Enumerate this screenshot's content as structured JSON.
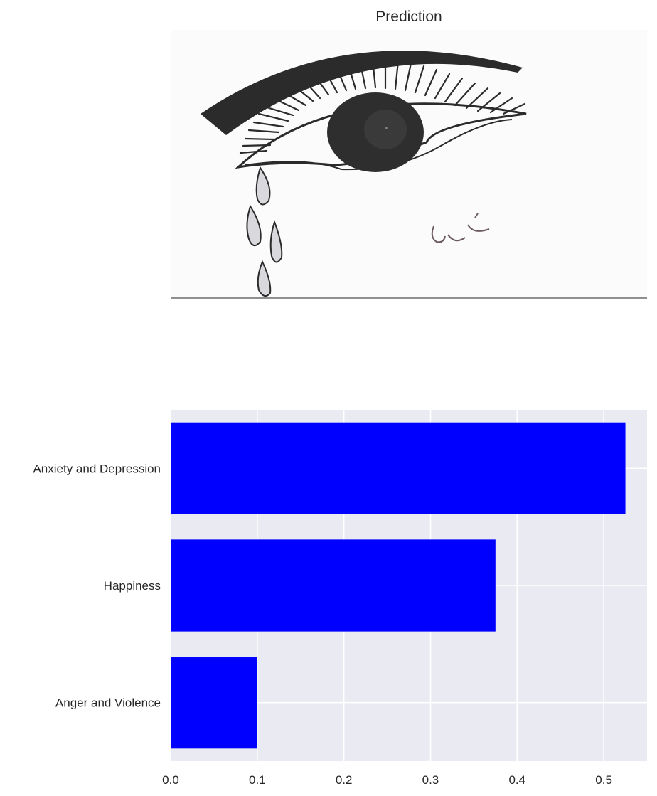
{
  "title": "Prediction",
  "drawing": {
    "description_icon": "crying-eye-drawing",
    "signature_text": "يمن"
  },
  "chart_data": {
    "type": "bar",
    "orientation": "horizontal",
    "categories": [
      "Anxiety and Depression",
      "Happiness",
      "Anger and Violence"
    ],
    "values": [
      0.525,
      0.375,
      0.1
    ],
    "xlim": [
      0,
      0.55
    ],
    "xticks": [
      "0.0",
      "0.1",
      "0.2",
      "0.3",
      "0.4",
      "0.5"
    ],
    "xtick_values": [
      0,
      0.1,
      0.2,
      0.3,
      0.4,
      0.5
    ],
    "xlabel": "",
    "ylabel": "",
    "grid": true,
    "bar_color": "#0000ff",
    "background": "#eaeaf2"
  }
}
